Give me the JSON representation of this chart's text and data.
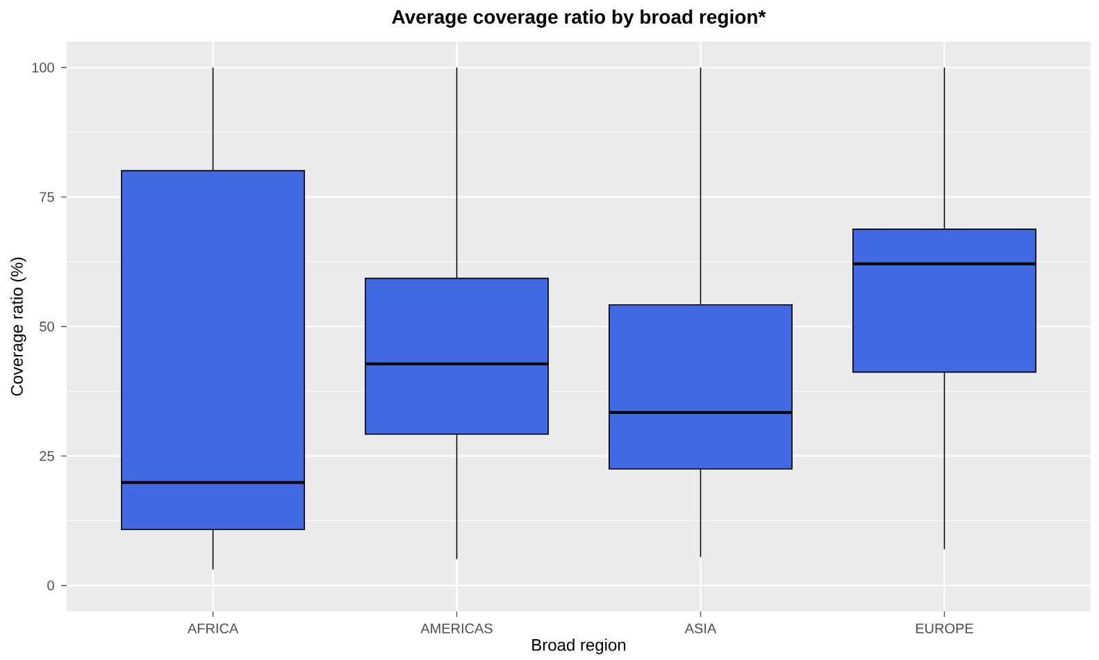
{
  "chart_data": {
    "type": "box",
    "title": "Average coverage ratio by broad region*",
    "xlabel": "Broad region",
    "ylabel": "Coverage ratio (%)",
    "categories": [
      "AFRICA",
      "AMERICAS",
      "ASIA",
      "EUROPE"
    ],
    "series": [
      {
        "color": "#4169e1",
        "boxes": [
          {
            "low": 3.1,
            "q1": 10.8,
            "median": 19.9,
            "q3": 80.1,
            "high": 100
          },
          {
            "low": 5.1,
            "q1": 29.2,
            "median": 42.8,
            "q3": 59.3,
            "high": 100
          },
          {
            "low": 5.5,
            "q1": 22.5,
            "median": 33.4,
            "q3": 54.2,
            "high": 100
          },
          {
            "low": 7.0,
            "q1": 41.2,
            "median": 62.1,
            "q3": 68.8,
            "high": 100
          }
        ]
      }
    ],
    "ylim": [
      -5,
      105
    ],
    "yticks": [
      0,
      25,
      50,
      75,
      100
    ],
    "grid": true
  }
}
